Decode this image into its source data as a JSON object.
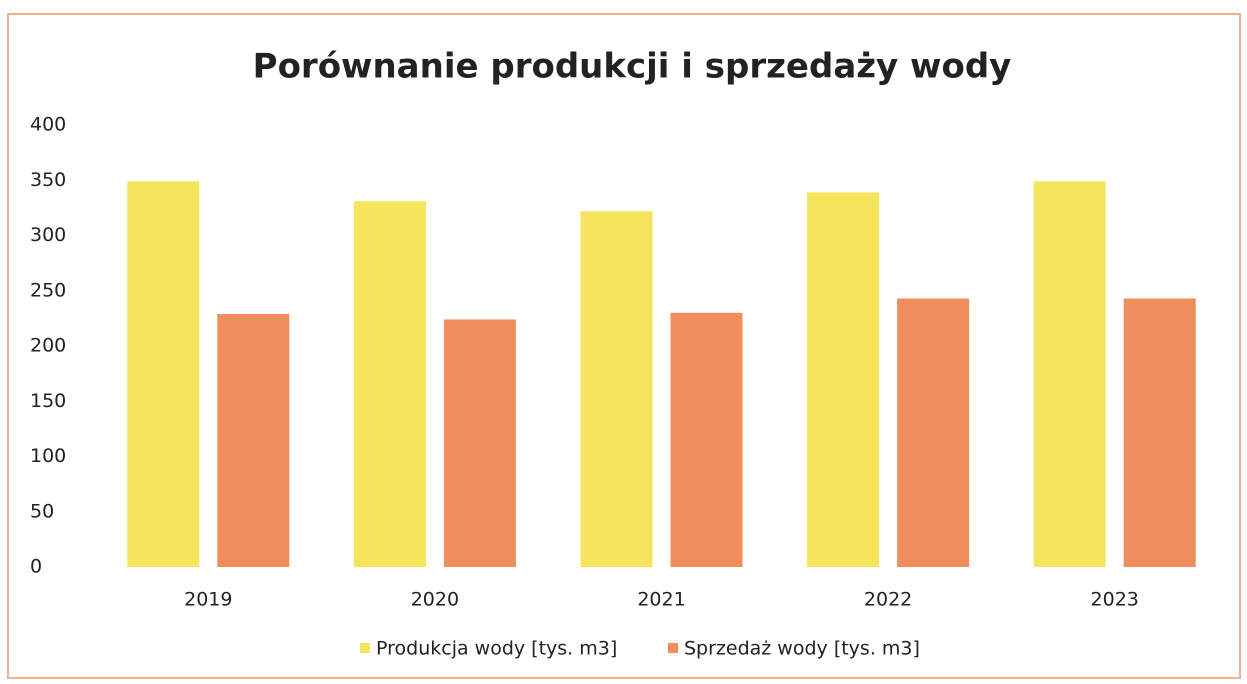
{
  "chart_data": {
    "type": "bar",
    "title": "Porównanie produkcji i sprzedaży wody",
    "categories": [
      "2019",
      "2020",
      "2021",
      "2022",
      "2023"
    ],
    "series": [
      {
        "name": "Produkcja wody [tys. m3]",
        "color": "#f6e45c",
        "values": [
          349,
          331,
          322,
          339,
          349
        ]
      },
      {
        "name": "Sprzedaż wody [tys. m3]",
        "color": "#ef8d5c",
        "values": [
          229,
          224,
          230,
          243,
          243
        ]
      }
    ],
    "ylim": [
      0,
      400
    ],
    "yticks": [
      0,
      50,
      100,
      150,
      200,
      250,
      300,
      350,
      400
    ],
    "grid": false,
    "legend": "bottom"
  }
}
